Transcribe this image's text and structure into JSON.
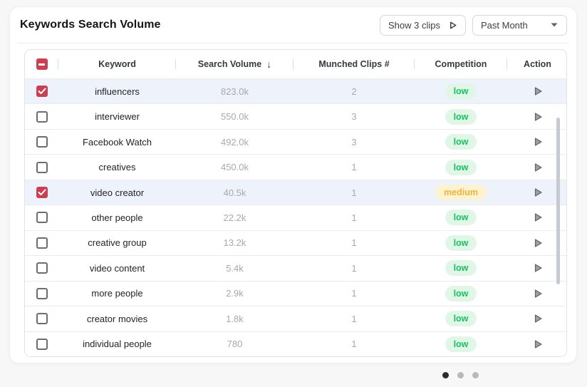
{
  "header": {
    "title": "Keywords Search Volume",
    "show_clips_button": {
      "label": "Show 3 clips",
      "icon": "play-outline"
    },
    "period_dropdown": {
      "selected": "Past Month",
      "icon": "caret-down"
    }
  },
  "table": {
    "columns": {
      "keyword": "Keyword",
      "search_volume": "Search Volume",
      "munched_clips": "Munched Clips #",
      "competition": "Competition",
      "action": "Action"
    },
    "sort": {
      "column": "Search Volume",
      "direction": "desc",
      "icon": "↓"
    },
    "header_checkbox_state": "indeterminate",
    "rows": [
      {
        "keyword": "influencers",
        "search_volume": "823.0k",
        "munched_clips": "2",
        "competition": "low",
        "checked": true
      },
      {
        "keyword": "interviewer",
        "search_volume": "550.0k",
        "munched_clips": "3",
        "competition": "low",
        "checked": false
      },
      {
        "keyword": "Facebook Watch",
        "search_volume": "492.0k",
        "munched_clips": "3",
        "competition": "low",
        "checked": false
      },
      {
        "keyword": "creatives",
        "search_volume": "450.0k",
        "munched_clips": "1",
        "competition": "low",
        "checked": false
      },
      {
        "keyword": "video creator",
        "search_volume": "40.5k",
        "munched_clips": "1",
        "competition": "medium",
        "checked": true
      },
      {
        "keyword": "other people",
        "search_volume": "22.2k",
        "munched_clips": "1",
        "competition": "low",
        "checked": false
      },
      {
        "keyword": "creative group",
        "search_volume": "13.2k",
        "munched_clips": "1",
        "competition": "low",
        "checked": false
      },
      {
        "keyword": "video content",
        "search_volume": "5.4k",
        "munched_clips": "1",
        "competition": "low",
        "checked": false
      },
      {
        "keyword": "more people",
        "search_volume": "2.9k",
        "munched_clips": "1",
        "competition": "low",
        "checked": false
      },
      {
        "keyword": "creator movies",
        "search_volume": "1.8k",
        "munched_clips": "1",
        "competition": "low",
        "checked": false
      },
      {
        "keyword": "individual people",
        "search_volume": "780",
        "munched_clips": "1",
        "competition": "low",
        "checked": false
      }
    ]
  },
  "pagination": {
    "dot_count": 3,
    "active_index": 0
  },
  "colors": {
    "accent_red": "#c94053",
    "selected_row_bg": "#eef3fb",
    "badge_low_bg": "#e0f7e8",
    "badge_low_text": "#1dbf63",
    "badge_medium_bg": "#fdf3d0",
    "badge_medium_text": "#f2b13c"
  }
}
